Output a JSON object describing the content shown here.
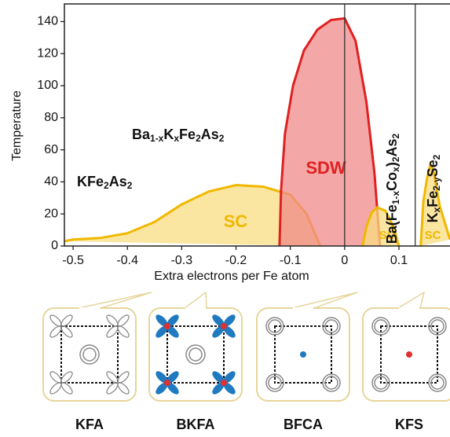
{
  "chart_data": {
    "type": "area",
    "xlabel": "Extra electrons per Fe atom",
    "ylabel": "Temperature",
    "xlim": [
      -0.516,
      0.194
    ],
    "ylim": [
      0,
      151
    ],
    "xticks": [
      -0.5,
      -0.4,
      -0.3,
      -0.2,
      -0.1,
      0,
      0.1
    ],
    "yticks": [
      0,
      20,
      40,
      60,
      80,
      100,
      120,
      140
    ],
    "vlines": [
      0,
      0.13
    ],
    "series": [
      {
        "name": "SC",
        "color": "#f0b800",
        "fill": "#f8dc82",
        "x": [
          -0.516,
          -0.5,
          -0.45,
          -0.4,
          -0.35,
          -0.3,
          -0.25,
          -0.2,
          -0.15,
          -0.1,
          -0.07,
          -0.045
        ],
        "values": [
          3,
          4,
          5,
          8,
          15,
          26,
          34,
          38,
          37,
          32,
          20,
          0
        ]
      },
      {
        "name": "SDW",
        "color": "#e02020",
        "fill": "#f08a8a",
        "x": [
          -0.12,
          -0.117,
          -0.11,
          -0.095,
          -0.075,
          -0.05,
          -0.025,
          0,
          0.02,
          0.04,
          0.055,
          0.065
        ],
        "values": [
          0,
          35,
          70,
          100,
          122,
          135,
          141,
          142,
          128,
          90,
          45,
          0
        ]
      },
      {
        "name": "SC",
        "color": "#f0b800",
        "fill": "#f8dc82",
        "x": [
          0.033,
          0.04,
          0.05,
          0.06,
          0.075,
          0.09,
          0.1
        ],
        "values": [
          0,
          12,
          21,
          24,
          22,
          12,
          0
        ]
      },
      {
        "name": "SC",
        "color": "#f0b800",
        "fill": "#f8dc82",
        "x": [
          0.14,
          0.145,
          0.152,
          0.158,
          0.165,
          0.175,
          0.194
        ],
        "values": [
          0,
          28,
          43,
          51,
          45,
          25,
          4
        ]
      }
    ],
    "compounds": [
      {
        "parts": [
          "KFe",
          "2",
          "As",
          "2"
        ]
      },
      {
        "parts": [
          "Ba",
          "1-x",
          "K",
          "x",
          "Fe",
          "2",
          "As",
          "2"
        ]
      },
      {
        "parts": [
          "Ba(Fe",
          "1-x",
          "Co",
          "x",
          ")",
          "2",
          "As",
          "2"
        ]
      },
      {
        "parts": [
          "K",
          "x",
          "Fe",
          "2-y",
          "Se",
          "2"
        ]
      }
    ]
  },
  "insets": [
    {
      "label": "KFA"
    },
    {
      "label": "BKFA"
    },
    {
      "label": "BFCA"
    },
    {
      "label": "KFS"
    }
  ]
}
